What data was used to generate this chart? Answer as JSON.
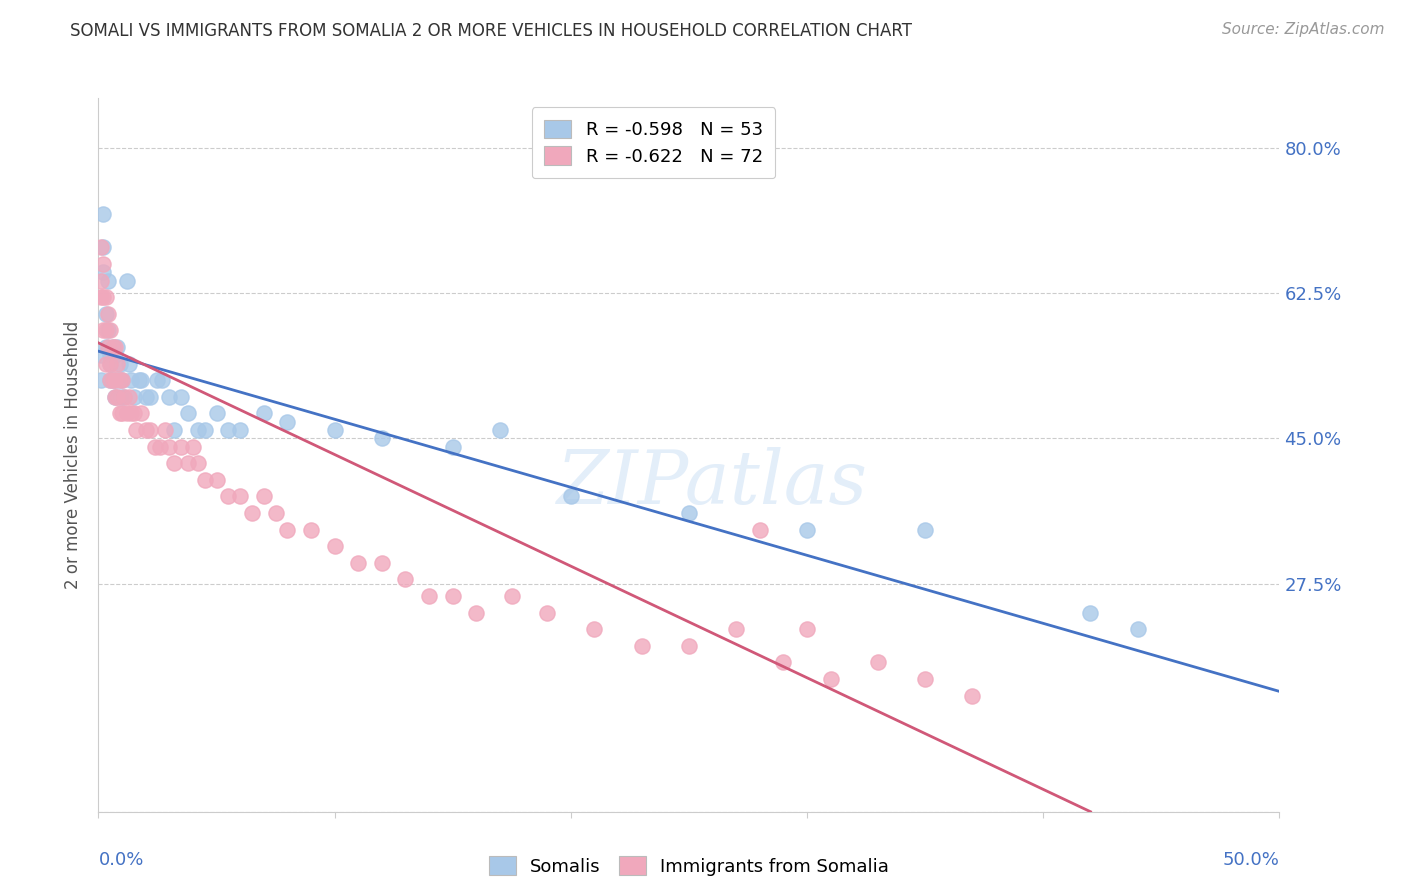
{
  "title": "SOMALI VS IMMIGRANTS FROM SOMALIA 2 OR MORE VEHICLES IN HOUSEHOLD CORRELATION CHART",
  "source": "Source: ZipAtlas.com",
  "ylabel": "2 or more Vehicles in Household",
  "y_ticks": [
    0.0,
    0.275,
    0.45,
    0.625,
    0.8
  ],
  "y_tick_labels": [
    "",
    "27.5%",
    "45.0%",
    "62.5%",
    "80.0%"
  ],
  "xmin": 0.0,
  "xmax": 0.5,
  "ymin": 0.0,
  "ymax": 0.86,
  "watermark_text": "ZIPatlas",
  "legend_label_blue": "R = -0.598   N = 53",
  "legend_label_pink": "R = -0.622   N = 72",
  "somali_color": "#a8c8e8",
  "somali_line_color": "#4472c4",
  "immigrant_color": "#f0a8bc",
  "immigrant_line_color": "#d05878",
  "background_color": "#ffffff",
  "grid_color": "#cccccc",
  "title_color": "#333333",
  "axis_label_color": "#4472c4",
  "right_y_label_color": "#4472c4",
  "somali_x": [
    0.001,
    0.001,
    0.002,
    0.002,
    0.002,
    0.003,
    0.003,
    0.004,
    0.004,
    0.005,
    0.005,
    0.005,
    0.006,
    0.006,
    0.007,
    0.007,
    0.008,
    0.008,
    0.009,
    0.009,
    0.01,
    0.011,
    0.012,
    0.013,
    0.014,
    0.015,
    0.017,
    0.018,
    0.02,
    0.022,
    0.025,
    0.027,
    0.03,
    0.032,
    0.035,
    0.038,
    0.042,
    0.045,
    0.05,
    0.055,
    0.06,
    0.07,
    0.08,
    0.1,
    0.12,
    0.15,
    0.17,
    0.2,
    0.25,
    0.3,
    0.35,
    0.42,
    0.44
  ],
  "somali_y": [
    0.55,
    0.52,
    0.72,
    0.68,
    0.65,
    0.6,
    0.56,
    0.64,
    0.58,
    0.55,
    0.54,
    0.52,
    0.56,
    0.52,
    0.55,
    0.5,
    0.56,
    0.52,
    0.54,
    0.5,
    0.52,
    0.5,
    0.64,
    0.54,
    0.52,
    0.5,
    0.52,
    0.52,
    0.5,
    0.5,
    0.52,
    0.52,
    0.5,
    0.46,
    0.5,
    0.48,
    0.46,
    0.46,
    0.48,
    0.46,
    0.46,
    0.48,
    0.47,
    0.46,
    0.45,
    0.44,
    0.46,
    0.38,
    0.36,
    0.34,
    0.34,
    0.24,
    0.22
  ],
  "immigrant_x": [
    0.001,
    0.001,
    0.001,
    0.002,
    0.002,
    0.002,
    0.003,
    0.003,
    0.003,
    0.004,
    0.004,
    0.005,
    0.005,
    0.005,
    0.006,
    0.006,
    0.007,
    0.007,
    0.007,
    0.008,
    0.008,
    0.009,
    0.009,
    0.01,
    0.01,
    0.011,
    0.012,
    0.013,
    0.014,
    0.015,
    0.016,
    0.018,
    0.02,
    0.022,
    0.024,
    0.026,
    0.028,
    0.03,
    0.032,
    0.035,
    0.038,
    0.04,
    0.042,
    0.045,
    0.05,
    0.055,
    0.06,
    0.065,
    0.07,
    0.075,
    0.08,
    0.09,
    0.1,
    0.11,
    0.12,
    0.13,
    0.14,
    0.15,
    0.16,
    0.175,
    0.19,
    0.21,
    0.23,
    0.25,
    0.27,
    0.29,
    0.31,
    0.33,
    0.35,
    0.37,
    0.28,
    0.3
  ],
  "immigrant_y": [
    0.68,
    0.64,
    0.62,
    0.66,
    0.62,
    0.58,
    0.62,
    0.58,
    0.54,
    0.6,
    0.56,
    0.58,
    0.54,
    0.52,
    0.56,
    0.52,
    0.56,
    0.52,
    0.5,
    0.54,
    0.5,
    0.52,
    0.48,
    0.52,
    0.48,
    0.5,
    0.48,
    0.5,
    0.48,
    0.48,
    0.46,
    0.48,
    0.46,
    0.46,
    0.44,
    0.44,
    0.46,
    0.44,
    0.42,
    0.44,
    0.42,
    0.44,
    0.42,
    0.4,
    0.4,
    0.38,
    0.38,
    0.36,
    0.38,
    0.36,
    0.34,
    0.34,
    0.32,
    0.3,
    0.3,
    0.28,
    0.26,
    0.26,
    0.24,
    0.26,
    0.24,
    0.22,
    0.2,
    0.2,
    0.22,
    0.18,
    0.16,
    0.18,
    0.16,
    0.14,
    0.34,
    0.22
  ]
}
